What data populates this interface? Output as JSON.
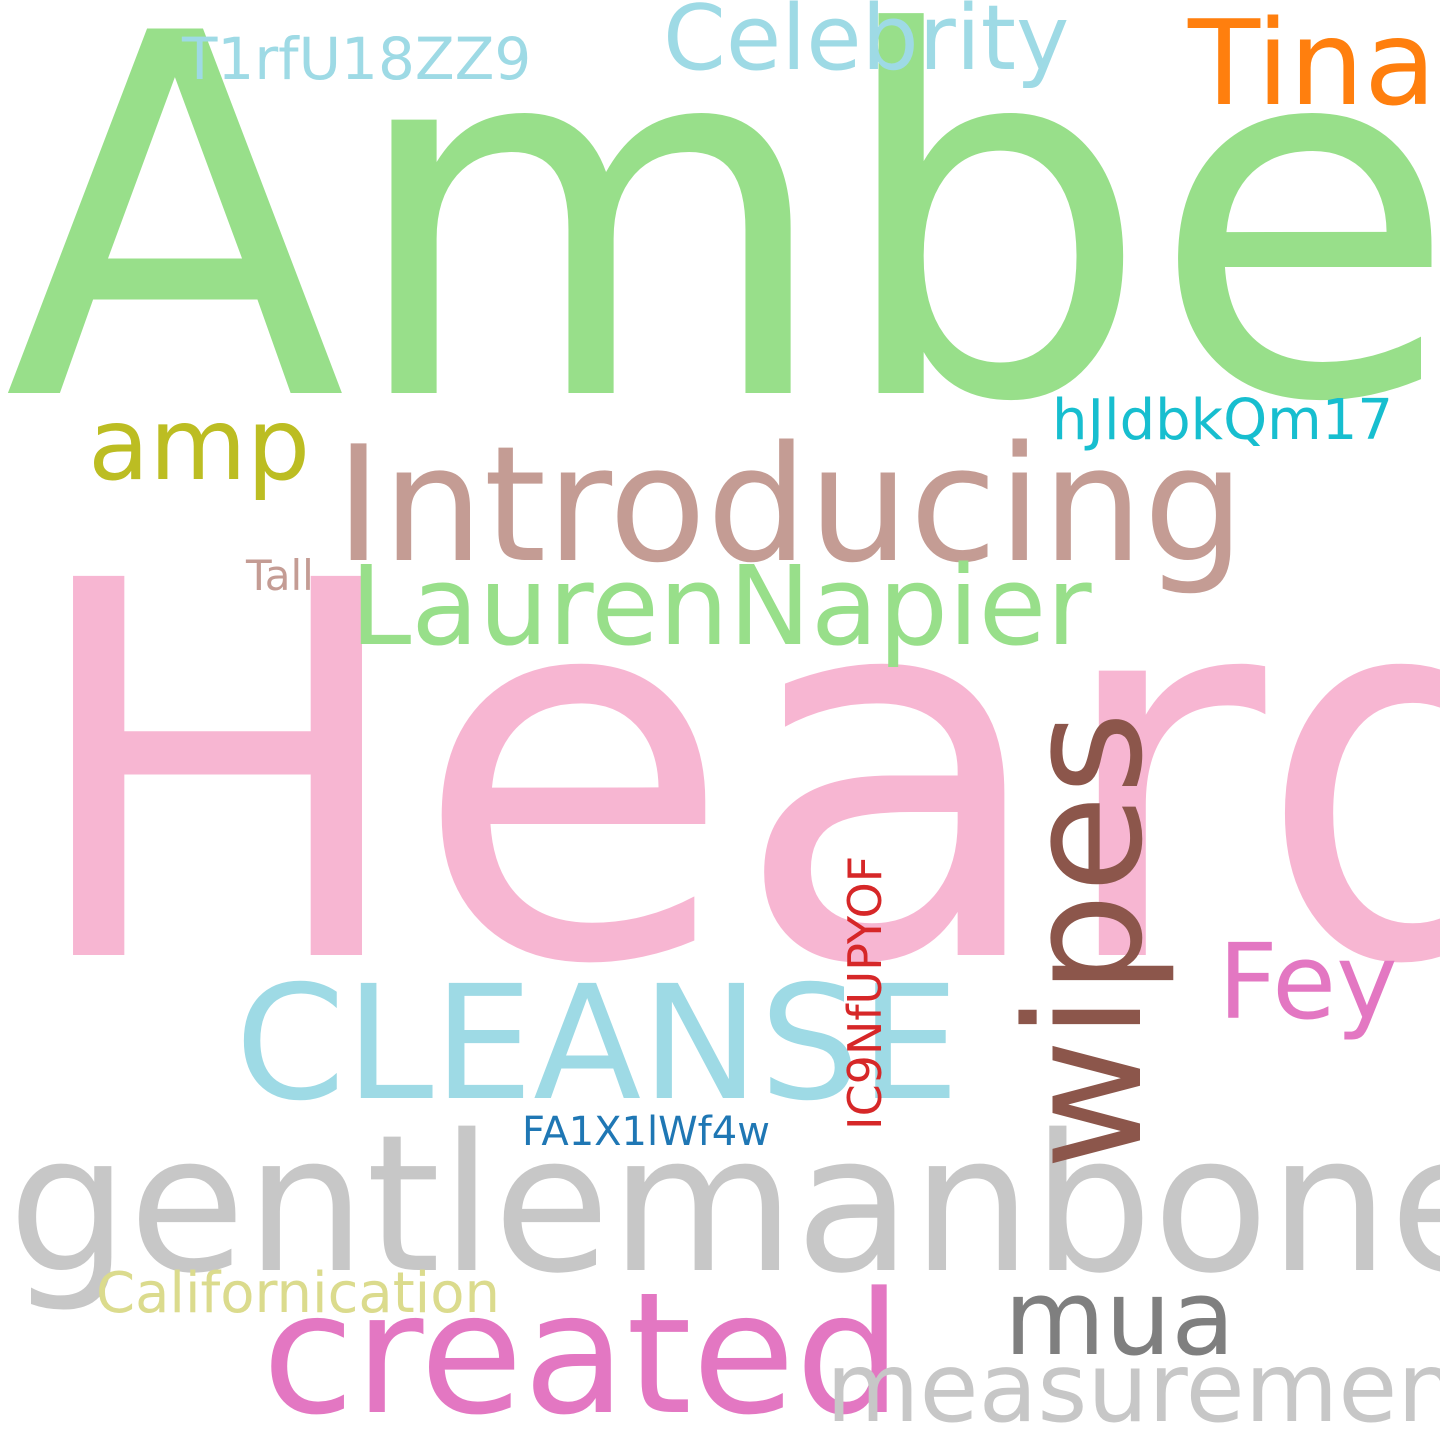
{
  "words": [
    {
      "id": "amber",
      "text": "Amber",
      "color": "#98df8a",
      "orientation": "horizontal"
    },
    {
      "id": "heard",
      "text": "Heard",
      "color": "#f7b6d2",
      "orientation": "horizontal"
    },
    {
      "id": "gentleman",
      "text": "gentlemanboners",
      "color": "#c7c7c7",
      "orientation": "horizontal"
    },
    {
      "id": "introducing",
      "text": "Introducing",
      "color": "#c49c94",
      "orientation": "horizontal"
    },
    {
      "id": "cleanse",
      "text": "CLEANSE",
      "color": "#9edae5",
      "orientation": "horizontal"
    },
    {
      "id": "created",
      "text": "created",
      "color": "#e377c2",
      "orientation": "horizontal"
    },
    {
      "id": "wipes",
      "text": "wipes",
      "color": "#8c564b",
      "orientation": "vertical"
    },
    {
      "id": "laurennapier",
      "text": "LaurenNapier",
      "color": "#98df8a",
      "orientation": "horizontal"
    },
    {
      "id": "tina",
      "text": "Tina",
      "color": "#ff7f0e",
      "orientation": "horizontal"
    },
    {
      "id": "celebrity",
      "text": "Celebrity",
      "color": "#9edae5",
      "orientation": "horizontal"
    },
    {
      "id": "amp",
      "text": "amp",
      "color": "#bcbd22",
      "orientation": "horizontal"
    },
    {
      "id": "fey",
      "text": "Fey",
      "color": "#e377c2",
      "orientation": "horizontal"
    },
    {
      "id": "mua",
      "text": "mua",
      "color": "#7f7f7f",
      "orientation": "horizontal"
    },
    {
      "id": "measurements",
      "text": "measurements",
      "color": "#c7c7c7",
      "orientation": "horizontal"
    },
    {
      "id": "californication",
      "text": "Californication",
      "color": "#dbdb8d",
      "orientation": "horizontal"
    },
    {
      "id": "t1rf",
      "text": "T1rfU18ZZ9",
      "color": "#9edae5",
      "orientation": "horizontal"
    },
    {
      "id": "hjld",
      "text": "hJldbkQm17",
      "color": "#17becf",
      "orientation": "horizontal"
    },
    {
      "id": "fa1x",
      "text": "FA1X1lWf4w",
      "color": "#1f77b4",
      "orientation": "horizontal"
    },
    {
      "id": "ic9n",
      "text": "IC9NfUPYOF",
      "color": "#d62728",
      "orientation": "vertical"
    },
    {
      "id": "tall",
      "text": "Tall",
      "color": "#c49c94",
      "orientation": "horizontal"
    }
  ]
}
